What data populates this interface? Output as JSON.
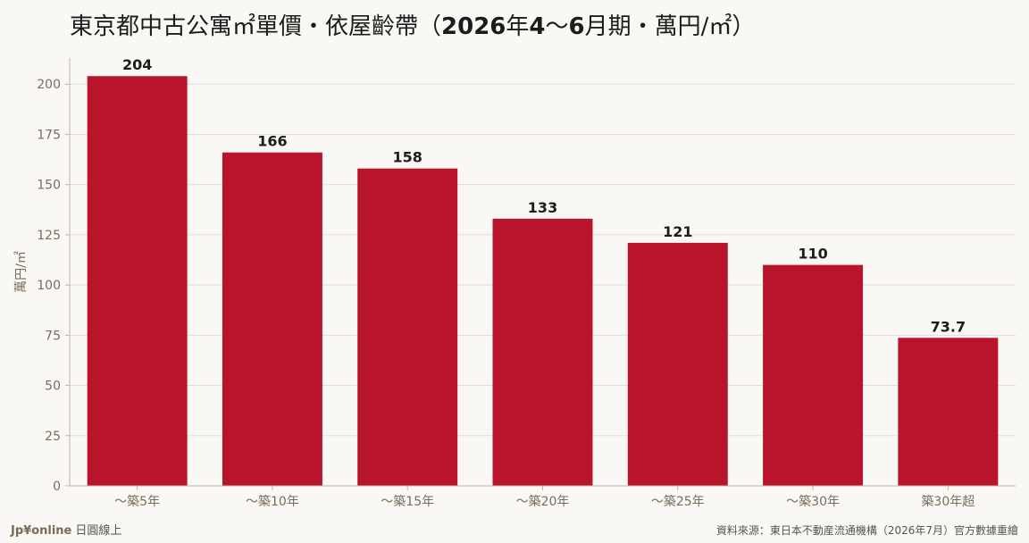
{
  "title": {
    "prefix": "東京都中古公寓㎡單價・依屋齡帶（",
    "year": "2026",
    "year_unit": "年",
    "period_start": "4",
    "tilde": "〜",
    "period_end": "6",
    "period_unit": "月期・萬円/㎡",
    "suffix": "）"
  },
  "footer": {
    "brand": "Jp¥online",
    "brand_sub": "日圓線上",
    "source": "資料來源：東日本不動産流通機構（2026年7月）官方數據重繪"
  },
  "colors": {
    "bar": "#b8142c",
    "grid": "#e2ddd6",
    "axis": "#bdb6ab",
    "tick": "#7a6d5c",
    "label": "#1c1c1c"
  },
  "chart_data": {
    "type": "bar",
    "categories": [
      "〜築5年",
      "〜築10年",
      "〜築15年",
      "〜築20年",
      "〜築25年",
      "〜築30年",
      "築30年超"
    ],
    "values": [
      204,
      166,
      158,
      133,
      121,
      110,
      73.7
    ],
    "data_labels": [
      "204",
      "166",
      "158",
      "133",
      "121",
      "110",
      "73.7"
    ],
    "ylabel": "萬円/㎡",
    "ylim": [
      0,
      213
    ],
    "yticks": [
      0,
      25,
      50,
      75,
      100,
      125,
      150,
      175,
      200
    ],
    "grid": true,
    "legend": "none"
  }
}
